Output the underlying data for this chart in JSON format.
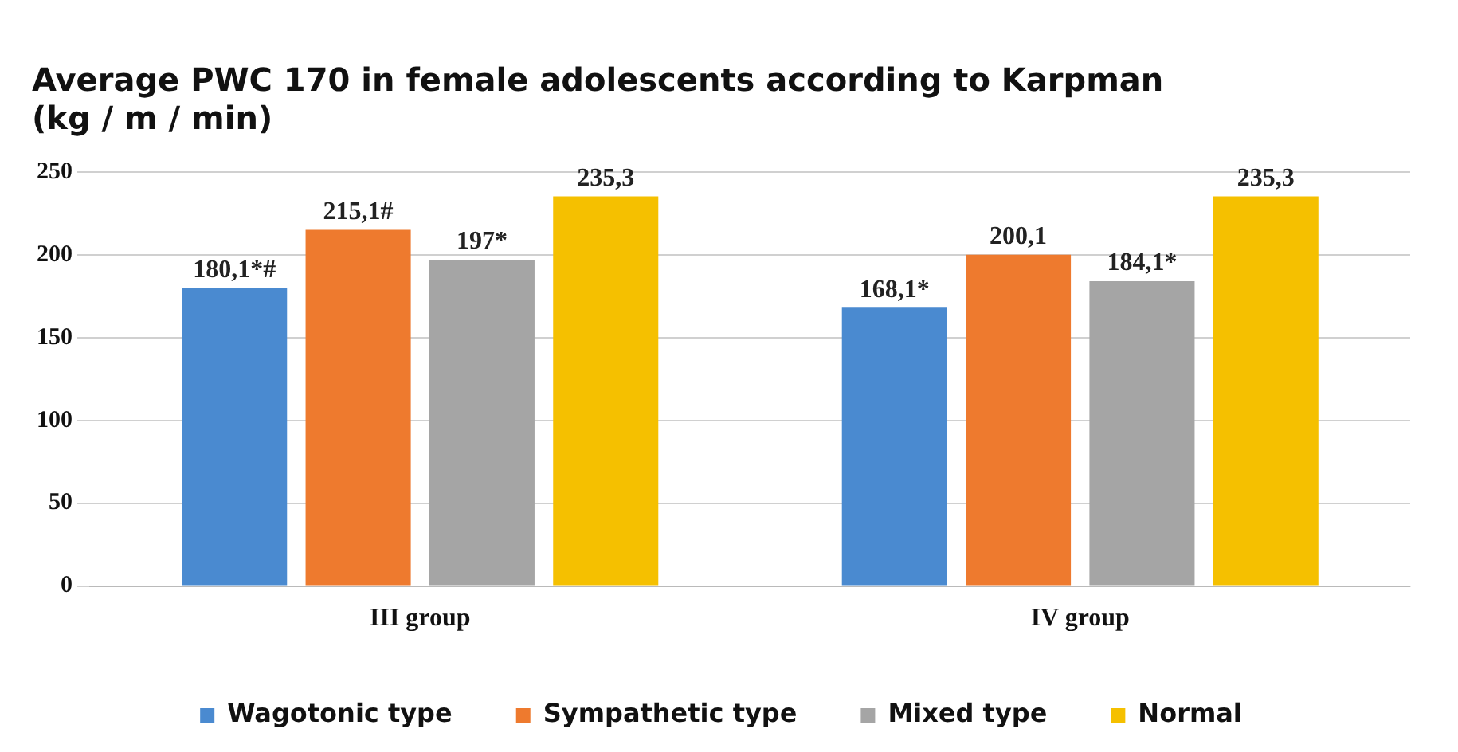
{
  "chart_data": {
    "type": "bar",
    "title": "Average PWC 170 in female adolescents according to Karpman\n(kg / m / min)",
    "categories": [
      "III group",
      "IV group"
    ],
    "series": [
      {
        "name": "Wagotonic type",
        "color": "#4a8ad0",
        "values": [
          180.1,
          168.1
        ],
        "value_labels": [
          "180,1*#",
          "168,1*"
        ]
      },
      {
        "name": "Sympathetic type",
        "color": "#ee7a2e",
        "values": [
          215.1,
          200.1
        ],
        "value_labels": [
          "215,1#",
          "200,1"
        ]
      },
      {
        "name": "Mixed type",
        "color": "#a5a5a5",
        "values": [
          197,
          184.1
        ],
        "value_labels": [
          "197*",
          "184,1*"
        ]
      },
      {
        "name": "Normal",
        "color": "#f5c000",
        "values": [
          235.3,
          235.3
        ],
        "value_labels": [
          "235,3",
          "235,3"
        ]
      }
    ],
    "ylim": [
      0,
      250
    ],
    "yticks": [
      0,
      50,
      100,
      150,
      200,
      250
    ],
    "grid": "y",
    "legend": "bottom"
  }
}
